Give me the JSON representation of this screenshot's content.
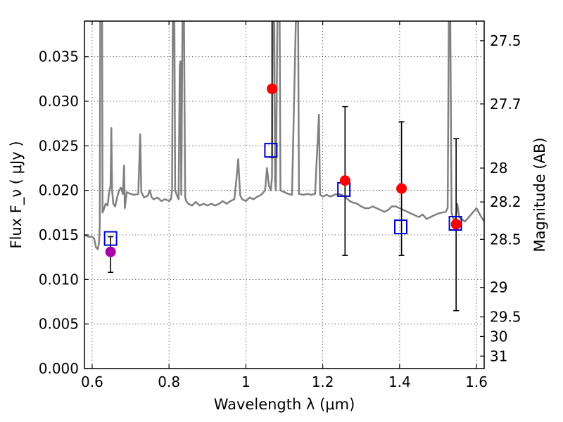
{
  "chart_data": {
    "type": "scatter",
    "xlabel": "Wavelength  λ (μm)",
    "ylabel": "Flux  F_ν  ( μJy )",
    "y2label": "Magnitude (AB)",
    "xlim": [
      0.58,
      1.62
    ],
    "ylim": [
      0.0,
      0.039
    ],
    "grid": true,
    "x_ticks": [
      0.6,
      0.8,
      1.0,
      1.2,
      1.4,
      1.6
    ],
    "x_tick_labels": [
      "0.6",
      "0.8",
      "1",
      "1.2",
      "1.4",
      "1.6"
    ],
    "y_ticks": [
      0.0,
      0.005,
      0.01,
      0.015,
      0.02,
      0.025,
      0.03,
      0.035
    ],
    "y_tick_labels": [
      "0.000",
      "0.005",
      "0.010",
      "0.015",
      "0.020",
      "0.025",
      "0.030",
      "0.035"
    ],
    "mag_ticks": [
      {
        "flux": 0.0368,
        "label": "27.5"
      },
      {
        "flux": 0.0297,
        "label": "27.7"
      },
      {
        "flux": 0.0225,
        "label": "28"
      },
      {
        "flux": 0.0187,
        "label": "28.2"
      },
      {
        "flux": 0.0145,
        "label": "28.5"
      },
      {
        "flux": 0.0091,
        "label": "29"
      },
      {
        "flux": 0.0058,
        "label": "29.5"
      },
      {
        "flux": 0.0036,
        "label": "30"
      },
      {
        "flux": 0.0014,
        "label": "31"
      }
    ],
    "model_spectrum": {
      "color": "#808080",
      "points": [
        [
          0.58,
          0.015
        ],
        [
          0.59,
          0.0148
        ],
        [
          0.6,
          0.0148
        ],
        [
          0.605,
          0.0146
        ],
        [
          0.61,
          0.0136
        ],
        [
          0.615,
          0.0134
        ],
        [
          0.618,
          0.0142
        ],
        [
          0.62,
          0.016
        ],
        [
          0.621,
          0.039
        ],
        [
          0.626,
          0.039
        ],
        [
          0.627,
          0.0175
        ],
        [
          0.63,
          0.0178
        ],
        [
          0.635,
          0.0185
        ],
        [
          0.64,
          0.0183
        ],
        [
          0.645,
          0.02
        ],
        [
          0.648,
          0.0205
        ],
        [
          0.65,
          0.027
        ],
        [
          0.652,
          0.02
        ],
        [
          0.655,
          0.0185
        ],
        [
          0.66,
          0.0182
        ],
        [
          0.665,
          0.0192
        ],
        [
          0.67,
          0.02
        ],
        [
          0.675,
          0.0203
        ],
        [
          0.68,
          0.0196
        ],
        [
          0.683,
          0.0228
        ],
        [
          0.685,
          0.018
        ],
        [
          0.69,
          0.0198
        ],
        [
          0.7,
          0.0196
        ],
        [
          0.71,
          0.0195
        ],
        [
          0.72,
          0.0196
        ],
        [
          0.725,
          0.0263
        ],
        [
          0.728,
          0.0198
        ],
        [
          0.735,
          0.0192
        ],
        [
          0.745,
          0.0194
        ],
        [
          0.75,
          0.02
        ],
        [
          0.755,
          0.0192
        ],
        [
          0.76,
          0.019
        ],
        [
          0.77,
          0.0192
        ],
        [
          0.78,
          0.0188
        ],
        [
          0.79,
          0.019
        ],
        [
          0.8,
          0.0188
        ],
        [
          0.805,
          0.019
        ],
        [
          0.808,
          0.02
        ],
        [
          0.81,
          0.039
        ],
        [
          0.814,
          0.039
        ],
        [
          0.816,
          0.02
        ],
        [
          0.82,
          0.0195
        ],
        [
          0.825,
          0.019
        ],
        [
          0.828,
          0.034
        ],
        [
          0.83,
          0.0345
        ],
        [
          0.832,
          0.0195
        ],
        [
          0.835,
          0.039
        ],
        [
          0.839,
          0.039
        ],
        [
          0.842,
          0.0192
        ],
        [
          0.845,
          0.0188
        ],
        [
          0.85,
          0.0185
        ],
        [
          0.86,
          0.0183
        ],
        [
          0.87,
          0.0187
        ],
        [
          0.88,
          0.0183
        ],
        [
          0.89,
          0.0185
        ],
        [
          0.9,
          0.0183
        ],
        [
          0.91,
          0.0185
        ],
        [
          0.92,
          0.0183
        ],
        [
          0.93,
          0.0185
        ],
        [
          0.94,
          0.0188
        ],
        [
          0.95,
          0.0185
        ],
        [
          0.96,
          0.0188
        ],
        [
          0.97,
          0.019
        ],
        [
          0.975,
          0.021
        ],
        [
          0.98,
          0.0235
        ],
        [
          0.985,
          0.0195
        ],
        [
          0.99,
          0.019
        ],
        [
          1.0,
          0.0188
        ],
        [
          1.01,
          0.0192
        ],
        [
          1.02,
          0.019
        ],
        [
          1.03,
          0.0193
        ],
        [
          1.04,
          0.0195
        ],
        [
          1.05,
          0.02
        ],
        [
          1.055,
          0.0225
        ],
        [
          1.06,
          0.0205
        ],
        [
          1.065,
          0.02
        ],
        [
          1.068,
          0.0215
        ],
        [
          1.07,
          0.039
        ],
        [
          1.074,
          0.039
        ],
        [
          1.076,
          0.021
        ],
        [
          1.078,
          0.02
        ],
        [
          1.082,
          0.039
        ],
        [
          1.088,
          0.039
        ],
        [
          1.09,
          0.02
        ],
        [
          1.1,
          0.0198
        ],
        [
          1.11,
          0.0196
        ],
        [
          1.12,
          0.0195
        ],
        [
          1.13,
          0.039
        ],
        [
          1.136,
          0.039
        ],
        [
          1.138,
          0.0196
        ],
        [
          1.15,
          0.0195
        ],
        [
          1.16,
          0.0196
        ],
        [
          1.17,
          0.0195
        ],
        [
          1.18,
          0.0196
        ],
        [
          1.185,
          0.024
        ],
        [
          1.19,
          0.0285
        ],
        [
          1.193,
          0.0195
        ],
        [
          1.2,
          0.0193
        ],
        [
          1.21,
          0.0195
        ],
        [
          1.22,
          0.0193
        ],
        [
          1.23,
          0.0195
        ],
        [
          1.24,
          0.0196
        ],
        [
          1.25,
          0.0195
        ],
        [
          1.26,
          0.0192
        ],
        [
          1.27,
          0.0188
        ],
        [
          1.28,
          0.0186
        ],
        [
          1.29,
          0.0185
        ],
        [
          1.3,
          0.0182
        ],
        [
          1.31,
          0.018
        ],
        [
          1.32,
          0.018
        ],
        [
          1.33,
          0.0182
        ],
        [
          1.34,
          0.018
        ],
        [
          1.35,
          0.0178
        ],
        [
          1.36,
          0.0176
        ],
        [
          1.37,
          0.0178
        ],
        [
          1.38,
          0.0182
        ],
        [
          1.39,
          0.0182
        ],
        [
          1.4,
          0.018
        ],
        [
          1.41,
          0.0178
        ],
        [
          1.42,
          0.0176
        ],
        [
          1.43,
          0.0174
        ],
        [
          1.44,
          0.0172
        ],
        [
          1.45,
          0.017
        ],
        [
          1.46,
          0.0173
        ],
        [
          1.47,
          0.0168
        ],
        [
          1.48,
          0.017
        ],
        [
          1.49,
          0.0172
        ],
        [
          1.5,
          0.0174
        ],
        [
          1.51,
          0.0175
        ],
        [
          1.52,
          0.0176
        ],
        [
          1.525,
          0.018
        ],
        [
          1.528,
          0.039
        ],
        [
          1.532,
          0.039
        ],
        [
          1.535,
          0.0175
        ],
        [
          1.54,
          0.0168
        ],
        [
          1.545,
          0.0166
        ],
        [
          1.55,
          0.0185
        ],
        [
          1.555,
          0.017
        ],
        [
          1.56,
          0.0168
        ],
        [
          1.57,
          0.0165
        ],
        [
          1.58,
          0.017
        ],
        [
          1.59,
          0.0175
        ],
        [
          1.6,
          0.018
        ],
        [
          1.61,
          0.0172
        ],
        [
          1.62,
          0.0165
        ]
      ]
    },
    "series": [
      {
        "marker": "square-open",
        "color": "#0000cc",
        "points": [
          {
            "x": 0.648,
            "y": 0.0146
          },
          {
            "x": 1.065,
            "y": 0.0245
          },
          {
            "x": 1.255,
            "y": 0.0201
          },
          {
            "x": 1.403,
            "y": 0.0159
          },
          {
            "x": 1.545,
            "y": 0.0163
          }
        ]
      },
      {
        "marker": "circle",
        "color": "#ff0000",
        "points": [
          {
            "x": 1.068,
            "y": 0.0314
          },
          {
            "x": 1.258,
            "y": 0.0211
          },
          {
            "x": 1.405,
            "y": 0.0202
          },
          {
            "x": 1.547,
            "y": 0.0162
          }
        ]
      },
      {
        "marker": "circle",
        "color": "#aa00aa",
        "points": [
          {
            "x": 0.648,
            "y": 0.0131
          }
        ]
      }
    ],
    "error_bars": [
      {
        "x": 0.648,
        "low": 0.0108,
        "high": 0.0148
      },
      {
        "x": 1.068,
        "low": 0.0237,
        "high": 0.0395
      },
      {
        "x": 1.258,
        "low": 0.0127,
        "high": 0.0294
      },
      {
        "x": 1.405,
        "low": 0.0127,
        "high": 0.0277
      },
      {
        "x": 1.547,
        "low": 0.0065,
        "high": 0.0258
      }
    ]
  }
}
